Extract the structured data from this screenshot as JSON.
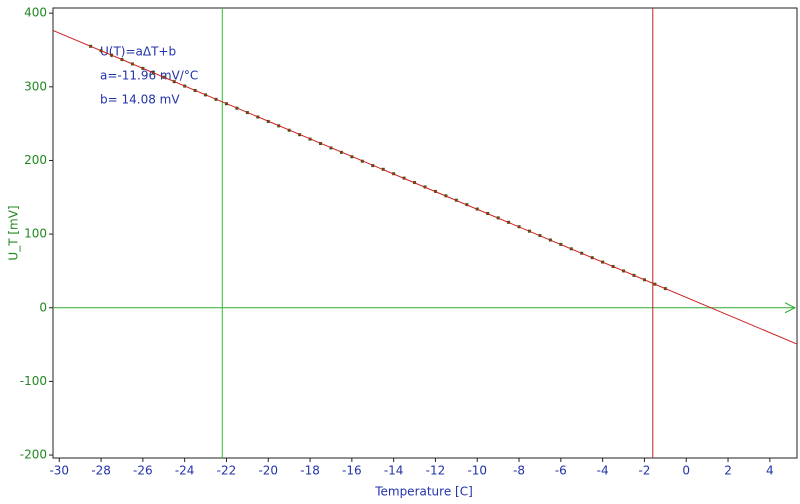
{
  "chart_data": {
    "type": "scatter",
    "x_label": "Temperature [C]",
    "y_label": "U_T [mV]",
    "annotations": [
      "U(T)=aΔT+b",
      "a=-11.96 mV/°C",
      "b= 14.08 mV"
    ],
    "xlim": [
      -30.3,
      5.3
    ],
    "ylim": [
      -204,
      407
    ],
    "xticks": [
      -30,
      -28,
      -26,
      -24,
      -22,
      -20,
      -18,
      -16,
      -14,
      -12,
      -10,
      -8,
      -6,
      -4,
      -2,
      0,
      2,
      4
    ],
    "yticks": [
      -200,
      -100,
      0,
      100,
      200,
      300,
      400
    ],
    "grid": false,
    "series": [
      {
        "color": "#2f5a12",
        "x": [
          -28.5,
          -28,
          -27.5,
          -27,
          -26.5,
          -26,
          -25.5,
          -25,
          -24.5,
          -24,
          -23.5,
          -23,
          -22.5,
          -22,
          -21.5,
          -21,
          -20.5,
          -20,
          -19.5,
          -19,
          -18.5,
          -18,
          -17.5,
          -17,
          -16.5,
          -16,
          -15.5,
          -15,
          -14.5,
          -14,
          -13.5,
          -13,
          -12.5,
          -12,
          -11.5,
          -11,
          -10.5,
          -10,
          -9.5,
          -9,
          -8.5,
          -8,
          -7.5,
          -7,
          -6.5,
          -6,
          -5.5,
          -5,
          -4.5,
          -4,
          -3.5,
          -3,
          -2.5,
          -2,
          -1.5,
          -1
        ],
        "values": [
          355,
          349,
          343,
          337,
          331,
          325,
          319,
          313,
          307,
          301,
          295,
          289,
          283,
          277,
          271,
          265,
          259,
          253,
          247,
          241,
          235,
          229,
          223,
          217,
          211,
          205,
          199,
          193,
          188,
          182,
          176,
          170,
          164,
          158,
          152,
          146,
          140,
          134,
          128,
          122,
          116,
          110,
          104,
          98,
          92,
          86,
          80,
          74,
          68,
          62,
          56,
          50,
          44,
          38,
          32,
          26
        ]
      },
      {
        "type": "line",
        "color": "#cc2020",
        "x": [
          -30.3,
          5.3
        ],
        "values": [
          376.5,
          -49.3
        ]
      }
    ],
    "cursors": [
      {
        "x": -22.2,
        "color": "#33bb33"
      },
      {
        "x": -1.6,
        "color": "#c42020"
      }
    ],
    "hline": {
      "y": 0,
      "color": "#33aa33"
    }
  }
}
